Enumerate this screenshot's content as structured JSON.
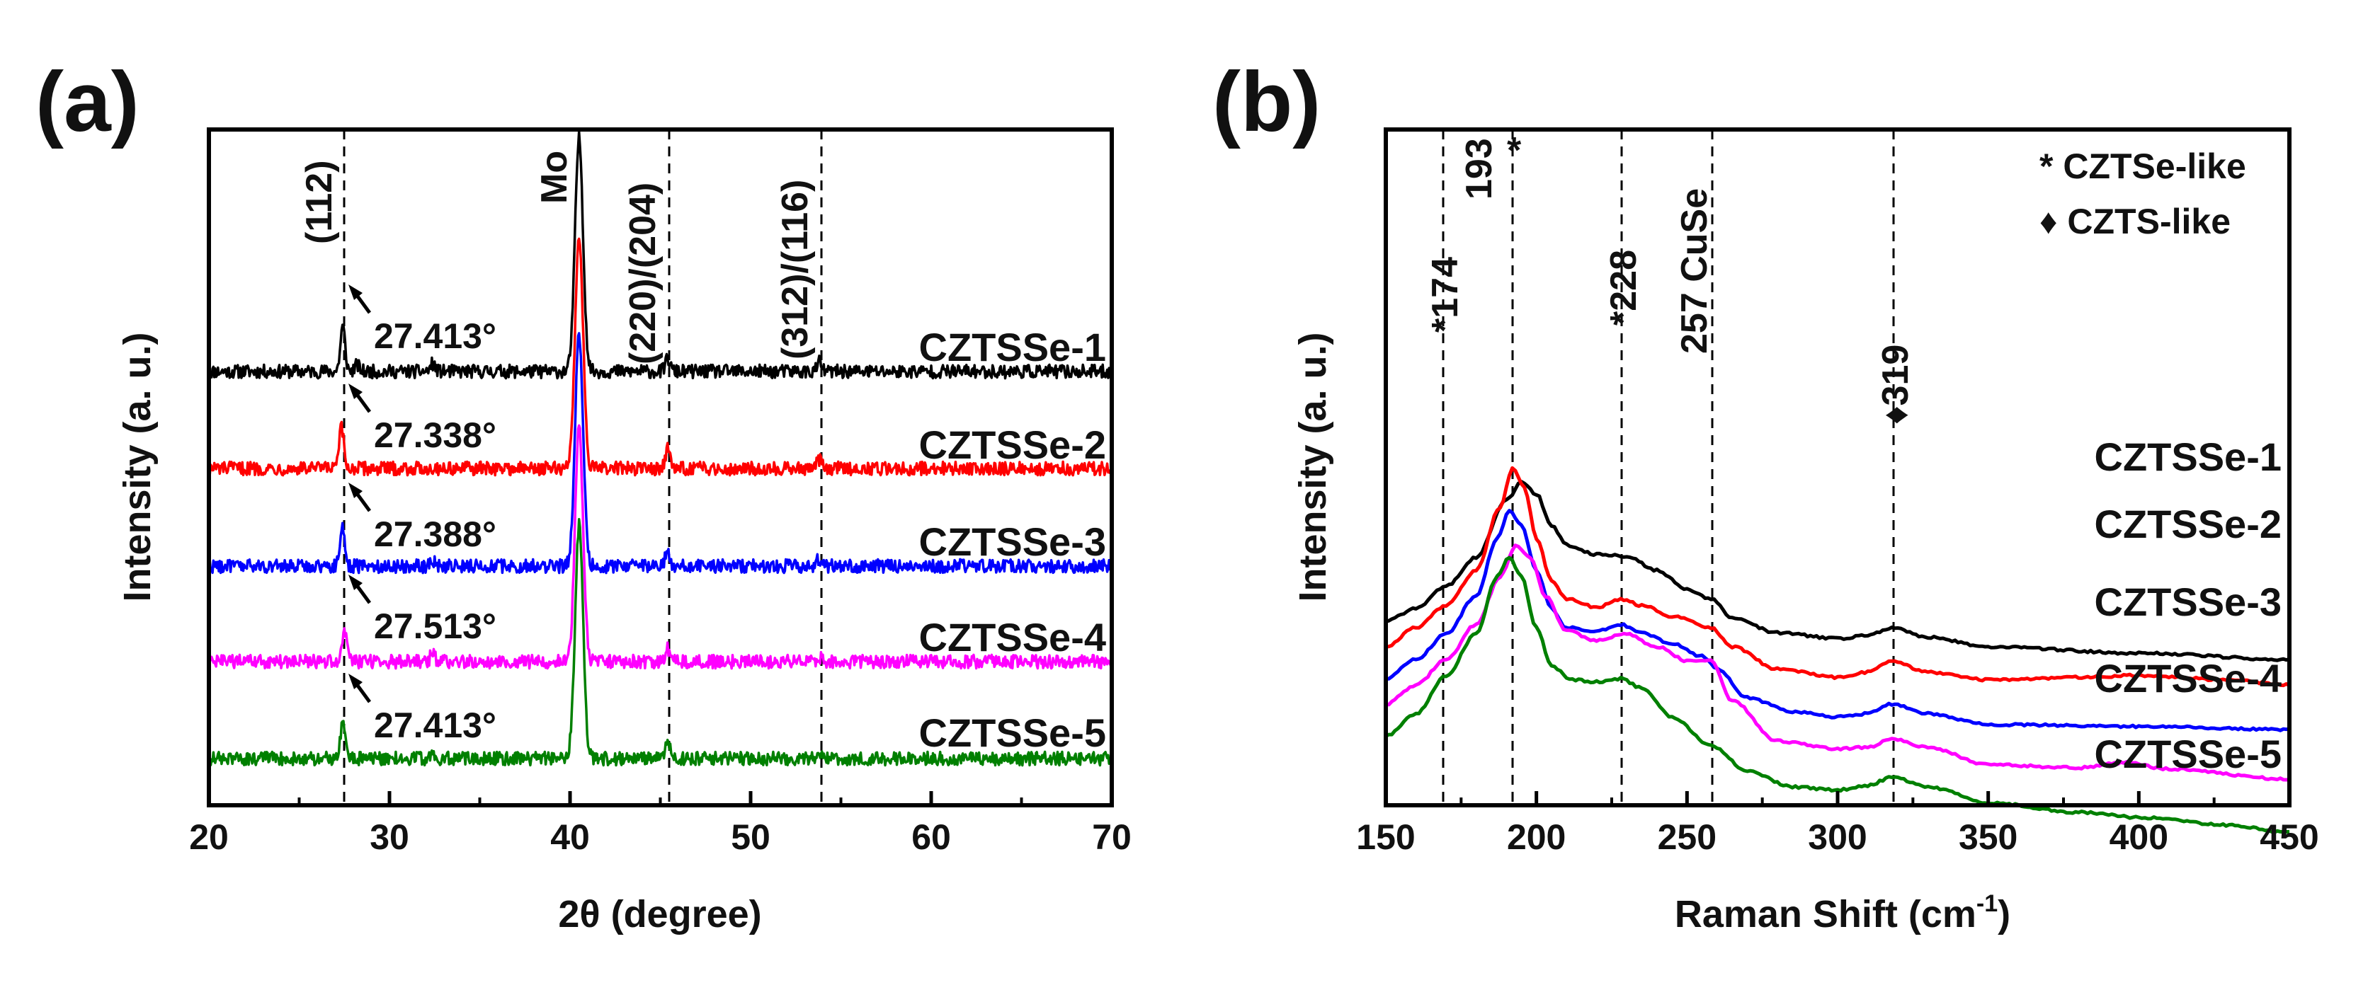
{
  "panels": {
    "a": {
      "letter": "(a)",
      "xlabel": "2θ (degree)",
      "ylabel": "Intensity (a. u.)",
      "xticks": [
        "20",
        "30",
        "40",
        "50",
        "60",
        "70"
      ],
      "peak_labels": [
        "(112)",
        "Mo",
        "(220)/(204)",
        "(312)/(116)"
      ],
      "series_labels": [
        "CZTSSe-1",
        "CZTSSe-2",
        "CZTSSe-3",
        "CZTSSe-4",
        "CZTSSe-5"
      ],
      "positions": [
        "27.413°",
        "27.338°",
        "27.388°",
        "27.513°",
        "27.413°"
      ]
    },
    "b": {
      "letter": "(b)",
      "xlabel_main": "Raman Shift (cm",
      "xlabel_sup": "-1",
      "xlabel_end": ")",
      "ylabel": "Intensity (a. u.)",
      "xticks": [
        "150",
        "200",
        "250",
        "300",
        "350",
        "400",
        "450"
      ],
      "peak_labels": [
        "*174",
        "193",
        "*",
        "*228",
        "257 CuSe",
        "♦319"
      ],
      "legend": [
        "* CZTSe-like",
        "♦ CZTS-like"
      ],
      "series_labels": [
        "CZTSSe-1",
        "CZTSSe-2",
        "CZTSSe-3",
        "CZTSSe-4",
        "CZTSSe-5"
      ]
    }
  },
  "colors": {
    "series": [
      "#000000",
      "#ff0000",
      "#0000ff",
      "#ff00ff",
      "#008000"
    ],
    "axes": "#000000"
  },
  "chart_data": [
    {
      "type": "line",
      "title": "(a)",
      "xlabel": "2θ (degree)",
      "ylabel": "Intensity (a. u.)",
      "xlim": [
        20,
        70
      ],
      "x_ticks": [
        20,
        30,
        40,
        50,
        60,
        70
      ],
      "y_ticks": "none",
      "reference_lines_x": [
        27.4,
        45.4,
        53.8
      ],
      "series": [
        {
          "name": "CZTSSe-1",
          "baseline": 4.0,
          "peaks": [
            {
              "x": 27.413,
              "h": 1.05
            },
            {
              "x": 28.2,
              "h": 0.15
            },
            {
              "x": 32.4,
              "h": 0.18
            },
            {
              "x": 40.5,
              "h": 5.5
            },
            {
              "x": 45.4,
              "h": 0.3
            },
            {
              "x": 53.8,
              "h": 0.22
            }
          ]
        },
        {
          "name": "CZTSSe-2",
          "baseline": 3.0,
          "peaks": [
            {
              "x": 27.338,
              "h": 0.95
            },
            {
              "x": 40.5,
              "h": 5.5
            },
            {
              "x": 45.4,
              "h": 0.45
            },
            {
              "x": 53.8,
              "h": 0.2
            }
          ]
        },
        {
          "name": "CZTSSe-3",
          "baseline": 2.0,
          "peaks": [
            {
              "x": 27.388,
              "h": 0.95
            },
            {
              "x": 32.4,
              "h": 0.12
            },
            {
              "x": 40.5,
              "h": 5.5
            },
            {
              "x": 45.4,
              "h": 0.35
            },
            {
              "x": 53.8,
              "h": 0.18
            }
          ]
        },
        {
          "name": "CZTSSe-4",
          "baseline": 1.0,
          "peaks": [
            {
              "x": 27.513,
              "h": 0.75
            },
            {
              "x": 32.4,
              "h": 0.2
            },
            {
              "x": 40.5,
              "h": 5.5
            },
            {
              "x": 45.4,
              "h": 0.3
            },
            {
              "x": 53.8,
              "h": 0.1
            }
          ]
        },
        {
          "name": "CZTSSe-5",
          "baseline": 0.0,
          "peaks": [
            {
              "x": 27.413,
              "h": 0.8
            },
            {
              "x": 32.4,
              "h": 0.15
            },
            {
              "x": 40.5,
              "h": 5.5
            },
            {
              "x": 45.4,
              "h": 0.45
            },
            {
              "x": 53.8,
              "h": 0.15
            }
          ]
        }
      ],
      "annotations": [
        "(112)",
        "Mo",
        "(220)/(204)",
        "(312)/(116)",
        "27.413°",
        "27.338°",
        "27.388°",
        "27.513°",
        "27.413°"
      ]
    },
    {
      "type": "line",
      "title": "(b)",
      "xlabel": "Raman Shift (cm-1)",
      "ylabel": "Intensity (a. u.)",
      "xlim": [
        150,
        450
      ],
      "x_ticks": [
        150,
        200,
        250,
        300,
        350,
        400,
        450
      ],
      "y_ticks": "none",
      "reference_lines_x": [
        169,
        192,
        228,
        258,
        318
      ],
      "series": [
        {
          "name": "CZTSSe-1",
          "points": [
            [
              150,
              2.6
            ],
            [
              160,
              2.8
            ],
            [
              170,
              3.15
            ],
            [
              180,
              3.6
            ],
            [
              190,
              4.5
            ],
            [
              195,
              4.78
            ],
            [
              200,
              4.6
            ],
            [
              205,
              4.1
            ],
            [
              210,
              3.8
            ],
            [
              220,
              3.65
            ],
            [
              230,
              3.62
            ],
            [
              240,
              3.4
            ],
            [
              250,
              3.1
            ],
            [
              258,
              2.95
            ],
            [
              265,
              2.65
            ],
            [
              280,
              2.42
            ],
            [
              300,
              2.33
            ],
            [
              310,
              2.38
            ],
            [
              318,
              2.5
            ],
            [
              330,
              2.35
            ],
            [
              350,
              2.2
            ],
            [
              400,
              2.1
            ],
            [
              450,
              2.0
            ]
          ]
        },
        {
          "name": "CZTSSe-2",
          "points": [
            [
              150,
              2.2
            ],
            [
              160,
              2.5
            ],
            [
              170,
              2.85
            ],
            [
              180,
              3.4
            ],
            [
              188,
              4.4
            ],
            [
              192,
              5.0
            ],
            [
              196,
              4.7
            ],
            [
              200,
              3.9
            ],
            [
              205,
              3.25
            ],
            [
              210,
              2.95
            ],
            [
              220,
              2.82
            ],
            [
              228,
              2.95
            ],
            [
              235,
              2.85
            ],
            [
              245,
              2.68
            ],
            [
              258,
              2.5
            ],
            [
              265,
              2.2
            ],
            [
              280,
              1.85
            ],
            [
              300,
              1.72
            ],
            [
              310,
              1.8
            ],
            [
              318,
              1.98
            ],
            [
              330,
              1.8
            ],
            [
              350,
              1.68
            ],
            [
              380,
              1.72
            ],
            [
              400,
              1.75
            ],
            [
              430,
              1.68
            ],
            [
              450,
              1.6
            ]
          ]
        },
        {
          "name": "CZTSSe-3",
          "points": [
            [
              150,
              1.7
            ],
            [
              160,
              2.0
            ],
            [
              170,
              2.4
            ],
            [
              180,
              3.0
            ],
            [
              187,
              3.9
            ],
            [
              191,
              4.35
            ],
            [
              195,
              4.1
            ],
            [
              200,
              3.4
            ],
            [
              205,
              2.8
            ],
            [
              210,
              2.5
            ],
            [
              220,
              2.45
            ],
            [
              228,
              2.55
            ],
            [
              235,
              2.42
            ],
            [
              245,
              2.25
            ],
            [
              255,
              2.05
            ],
            [
              260,
              1.85
            ],
            [
              270,
              1.4
            ],
            [
              285,
              1.18
            ],
            [
              300,
              1.1
            ],
            [
              310,
              1.15
            ],
            [
              318,
              1.3
            ],
            [
              330,
              1.15
            ],
            [
              350,
              0.98
            ],
            [
              400,
              0.95
            ],
            [
              450,
              0.9
            ]
          ]
        },
        {
          "name": "CZTSSe-4",
          "points": [
            [
              150,
              1.3
            ],
            [
              160,
              1.6
            ],
            [
              170,
              2.0
            ],
            [
              180,
              2.55
            ],
            [
              188,
              3.3
            ],
            [
              193,
              3.78
            ],
            [
              198,
              3.6
            ],
            [
              203,
              3.0
            ],
            [
              210,
              2.45
            ],
            [
              220,
              2.3
            ],
            [
              230,
              2.4
            ],
            [
              240,
              2.2
            ],
            [
              250,
              1.98
            ],
            [
              258,
              1.98
            ],
            [
              265,
              1.35
            ],
            [
              280,
              0.72
            ],
            [
              300,
              0.6
            ],
            [
              310,
              0.62
            ],
            [
              318,
              0.75
            ],
            [
              330,
              0.62
            ],
            [
              350,
              0.35
            ],
            [
              380,
              0.3
            ],
            [
              395,
              0.38
            ],
            [
              410,
              0.28
            ],
            [
              450,
              0.12
            ]
          ]
        },
        {
          "name": "CZTSSe-5",
          "points": [
            [
              150,
              0.8
            ],
            [
              160,
              1.15
            ],
            [
              170,
              1.75
            ],
            [
              180,
              2.4
            ],
            [
              187,
              3.3
            ],
            [
              191,
              3.6
            ],
            [
              195,
              3.3
            ],
            [
              200,
              2.5
            ],
            [
              205,
              1.9
            ],
            [
              212,
              1.68
            ],
            [
              220,
              1.65
            ],
            [
              228,
              1.7
            ],
            [
              235,
              1.55
            ],
            [
              245,
              1.1
            ],
            [
              258,
              0.65
            ],
            [
              270,
              0.25
            ],
            [
              285,
              0.0
            ],
            [
              300,
              -0.05
            ],
            [
              310,
              0.02
            ],
            [
              318,
              0.15
            ],
            [
              330,
              0.0
            ],
            [
              350,
              -0.25
            ],
            [
              380,
              -0.4
            ],
            [
              400,
              -0.48
            ],
            [
              430,
              -0.6
            ],
            [
              450,
              -0.72
            ]
          ]
        }
      ],
      "annotations": [
        "*174",
        "193",
        "*",
        "*228",
        "257 CuSe",
        "♦319"
      ],
      "legend": [
        "* CZTSe-like",
        "♦ CZTS-like"
      ]
    }
  ]
}
